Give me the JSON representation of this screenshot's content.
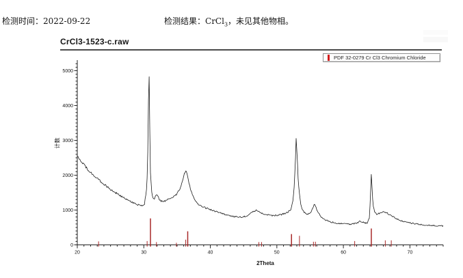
{
  "header": {
    "time_label": "检测时间：",
    "time_value": "2022-09-22",
    "result_label": "检测结果：",
    "result_formula": "CrCl",
    "result_formula_sub": "3",
    "result_note": "，未见其他物相。"
  },
  "colors": {
    "accent_red": "#d41a1a",
    "reference_red": "#a82828",
    "curve_black": "#1a1a1a",
    "axis": "#222222"
  },
  "chart_data": {
    "type": "line",
    "title": "CrCl3-1523-c.raw",
    "xlabel": "2Theta",
    "ylabel": "计数",
    "xlim": [
      20,
      75
    ],
    "ylim": [
      0,
      5300
    ],
    "x_major_ticks": [
      20,
      30,
      40,
      50,
      60,
      70
    ],
    "x_minor_step": 1,
    "y_major_ticks": [
      0,
      1000,
      2000,
      3000,
      4000,
      5000
    ],
    "y_minor_step": 100,
    "grid": false,
    "legend": {
      "label": "PDF 32-0279 Cr Cl3 Chromium Chloride",
      "position": "top-right",
      "marker_color": "#d41a1a"
    },
    "series": [
      {
        "name": "CrCl3-1523-c.raw measured pattern",
        "color": "#1a1a1a",
        "points": [
          [
            20,
            2560
          ],
          [
            20.4,
            2450
          ],
          [
            20.8,
            2350
          ],
          [
            21.2,
            2250
          ],
          [
            21.6,
            2160
          ],
          [
            22,
            2080
          ],
          [
            22.4,
            2000
          ],
          [
            22.8,
            1930
          ],
          [
            23.2,
            1870
          ],
          [
            23.6,
            1800
          ],
          [
            24,
            1740
          ],
          [
            24.4,
            1680
          ],
          [
            24.8,
            1620
          ],
          [
            25.2,
            1570
          ],
          [
            25.6,
            1520
          ],
          [
            26,
            1470
          ],
          [
            26.4,
            1420
          ],
          [
            26.8,
            1370
          ],
          [
            27.2,
            1330
          ],
          [
            27.6,
            1290
          ],
          [
            28,
            1250
          ],
          [
            28.4,
            1210
          ],
          [
            28.8,
            1180
          ],
          [
            29.2,
            1150
          ],
          [
            29.6,
            1120
          ],
          [
            29.9,
            1110
          ],
          [
            30.1,
            1180
          ],
          [
            30.3,
            1420
          ],
          [
            30.45,
            1700
          ],
          [
            30.55,
            2100
          ],
          [
            30.65,
            3200
          ],
          [
            30.72,
            4600
          ],
          [
            30.78,
            5080
          ],
          [
            30.85,
            4300
          ],
          [
            30.92,
            3000
          ],
          [
            31.0,
            2100
          ],
          [
            31.15,
            1600
          ],
          [
            31.3,
            1380
          ],
          [
            31.5,
            1300
          ],
          [
            31.7,
            1360
          ],
          [
            31.9,
            1440
          ],
          [
            32.1,
            1400
          ],
          [
            32.35,
            1310
          ],
          [
            32.6,
            1260
          ],
          [
            32.9,
            1230
          ],
          [
            33.3,
            1270
          ],
          [
            33.7,
            1310
          ],
          [
            34.1,
            1340
          ],
          [
            34.5,
            1390
          ],
          [
            34.9,
            1450
          ],
          [
            35.2,
            1530
          ],
          [
            35.5,
            1650
          ],
          [
            35.8,
            1820
          ],
          [
            36.05,
            2000
          ],
          [
            36.25,
            2110
          ],
          [
            36.4,
            2100
          ],
          [
            36.6,
            1970
          ],
          [
            36.8,
            1780
          ],
          [
            37.1,
            1550
          ],
          [
            37.4,
            1390
          ],
          [
            37.7,
            1290
          ],
          [
            38,
            1210
          ],
          [
            38.4,
            1140
          ],
          [
            38.9,
            1090
          ],
          [
            39.4,
            1050
          ],
          [
            40,
            1010
          ],
          [
            40.6,
            970
          ],
          [
            41.2,
            930
          ],
          [
            41.9,
            890
          ],
          [
            42.6,
            850
          ],
          [
            43.3,
            820
          ],
          [
            44,
            800
          ],
          [
            44.7,
            800
          ],
          [
            45.3,
            820
          ],
          [
            45.8,
            860
          ],
          [
            46.3,
            930
          ],
          [
            46.7,
            980
          ],
          [
            47,
            990
          ],
          [
            47.4,
            950
          ],
          [
            47.8,
            900
          ],
          [
            48.3,
            870
          ],
          [
            48.9,
            850
          ],
          [
            49.5,
            840
          ],
          [
            50.1,
            845
          ],
          [
            50.7,
            870
          ],
          [
            51.2,
            910
          ],
          [
            51.7,
            950
          ],
          [
            52.1,
            1020
          ],
          [
            52.4,
            1250
          ],
          [
            52.6,
            1650
          ],
          [
            52.75,
            2300
          ],
          [
            52.9,
            3030
          ],
          [
            53.05,
            2600
          ],
          [
            53.2,
            1900
          ],
          [
            53.4,
            1450
          ],
          [
            53.6,
            1150
          ],
          [
            53.9,
            980
          ],
          [
            54.3,
            900
          ],
          [
            54.7,
            880
          ],
          [
            55.1,
            950
          ],
          [
            55.4,
            1060
          ],
          [
            55.65,
            1170
          ],
          [
            55.8,
            1120
          ],
          [
            56.1,
            960
          ],
          [
            56.5,
            840
          ],
          [
            57,
            750
          ],
          [
            57.6,
            690
          ],
          [
            58.3,
            650
          ],
          [
            59,
            625
          ],
          [
            59.8,
            605
          ],
          [
            60.6,
            595
          ],
          [
            61.4,
            600
          ],
          [
            62,
            620
          ],
          [
            62.5,
            680
          ],
          [
            62.8,
            660
          ],
          [
            63.2,
            630
          ],
          [
            63.6,
            630
          ],
          [
            63.9,
            760
          ],
          [
            64.05,
            1300
          ],
          [
            64.18,
            2100
          ],
          [
            64.3,
            1700
          ],
          [
            64.45,
            1150
          ],
          [
            64.7,
            950
          ],
          [
            65,
            880
          ],
          [
            65.4,
            900
          ],
          [
            65.8,
            940
          ],
          [
            66.2,
            950
          ],
          [
            66.6,
            910
          ],
          [
            67,
            860
          ],
          [
            67.4,
            810
          ],
          [
            67.9,
            760
          ],
          [
            68.5,
            710
          ],
          [
            69.2,
            670
          ],
          [
            70,
            630
          ],
          [
            70.8,
            605
          ],
          [
            71.6,
            585
          ],
          [
            72.4,
            570
          ],
          [
            73.2,
            558
          ],
          [
            74,
            548
          ],
          [
            74.6,
            542
          ],
          [
            75,
            538
          ]
        ]
      }
    ],
    "reference_pattern": {
      "name": "PDF 32-0279 Cr Cl3 Chromium Chloride",
      "color": "#a82828",
      "lines": [
        [
          23.2,
          100
        ],
        [
          30.5,
          110
        ],
        [
          31.0,
          760
        ],
        [
          31.9,
          80
        ],
        [
          34.9,
          60
        ],
        [
          36.3,
          150
        ],
        [
          36.6,
          390
        ],
        [
          47.3,
          80
        ],
        [
          47.7,
          80
        ],
        [
          52.2,
          310
        ],
        [
          53.4,
          260
        ],
        [
          55.5,
          90
        ],
        [
          55.8,
          90
        ],
        [
          61.7,
          110
        ],
        [
          64.2,
          470
        ],
        [
          66.3,
          130
        ],
        [
          67.2,
          130
        ]
      ]
    }
  }
}
